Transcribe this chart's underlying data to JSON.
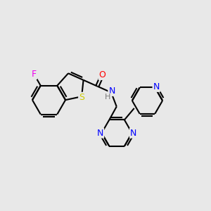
{
  "background_color": "#e8e8e8",
  "bond_color": "#000000",
  "atom_colors": {
    "F": "#ee00ee",
    "S": "#cccc00",
    "O": "#ff0000",
    "N": "#0000ff",
    "H": "#777777"
  },
  "figsize": [
    3.0,
    3.0
  ],
  "dpi": 100
}
